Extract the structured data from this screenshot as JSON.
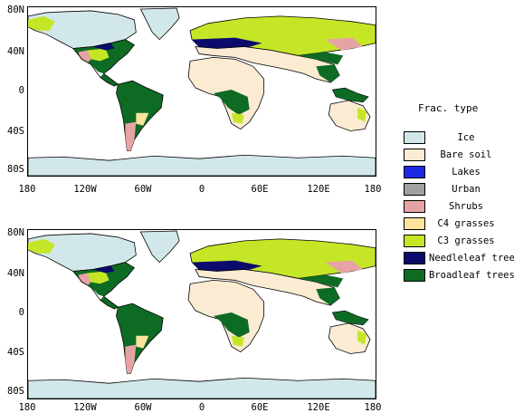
{
  "panels": [
    {
      "lat_labels": [
        "80N",
        "40N",
        "0",
        "40S",
        "80S"
      ],
      "lon_labels": [
        "180",
        "120W",
        "60W",
        "0",
        "60E",
        "120E",
        "180"
      ]
    },
    {
      "lat_labels": [
        "80N",
        "40N",
        "0",
        "40S",
        "80S"
      ],
      "lon_labels": [
        "180",
        "120W",
        "60W",
        "0",
        "60E",
        "120E",
        "180"
      ]
    }
  ],
  "legend": {
    "title": "Frac. type",
    "items": [
      {
        "label": "Ice",
        "color": "#d2e7ea",
        "icon": "ice-swatch"
      },
      {
        "label": "Bare soil",
        "color": "#fcebd3",
        "icon": "bare-soil-swatch"
      },
      {
        "label": "Lakes",
        "color": "#1e28e6",
        "icon": "lakes-swatch"
      },
      {
        "label": "Urban",
        "color": "#a0a0a0",
        "icon": "urban-swatch"
      },
      {
        "label": "Shrubs",
        "color": "#e6a3a5",
        "icon": "shrubs-swatch"
      },
      {
        "label": "C4 grasses",
        "color": "#fce49c",
        "icon": "c4-grasses-swatch"
      },
      {
        "label": "C3 grasses",
        "color": "#c5e627",
        "icon": "c3-grasses-swatch"
      },
      {
        "label": "Needleleaf trees",
        "color": "#0b0b6e",
        "icon": "needleleaf-trees-swatch"
      },
      {
        "label": "Broadleaf trees",
        "color": "#0e6b24",
        "icon": "broadleaf-trees-swatch"
      }
    ]
  }
}
